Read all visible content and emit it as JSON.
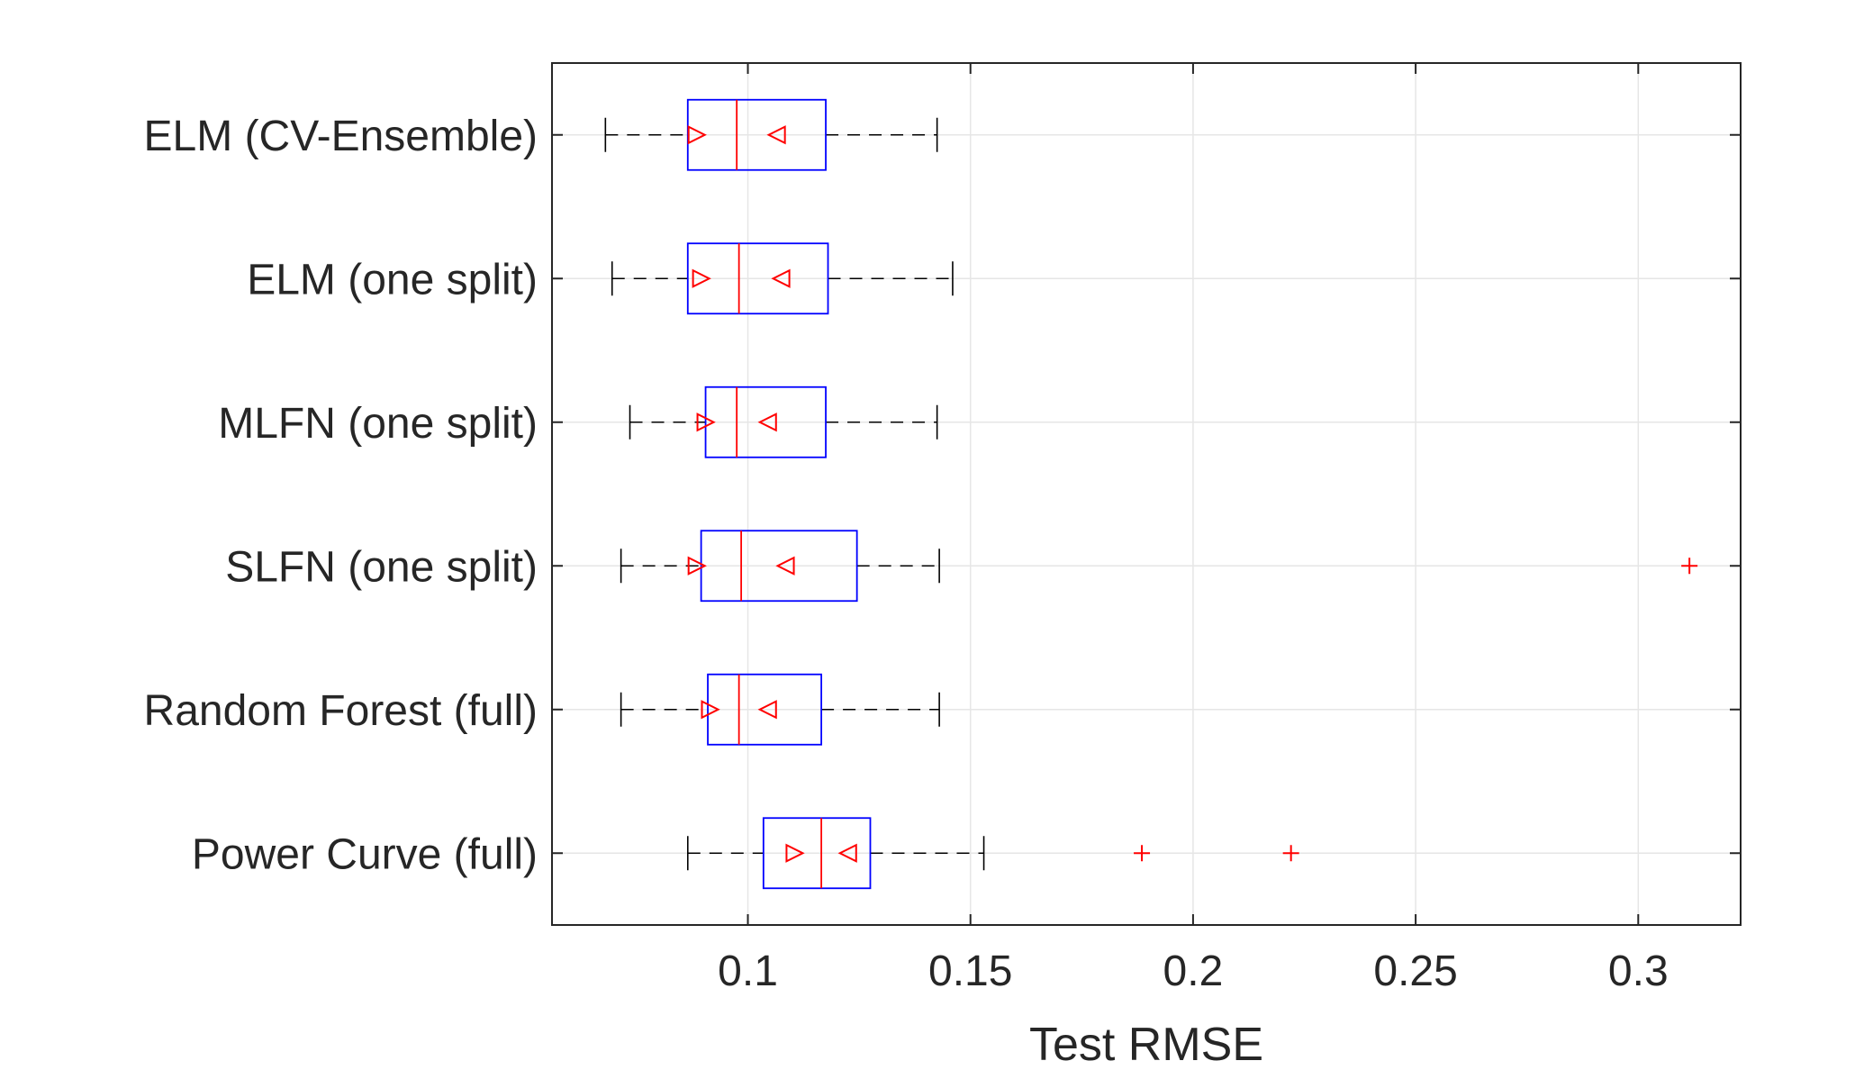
{
  "chart_data": {
    "type": "box",
    "orientation": "horizontal",
    "title": "",
    "xlabel": "Test RMSE",
    "ylabel": "",
    "xlim": [
      0.056,
      0.323
    ],
    "xticks": [
      0.1,
      0.15,
      0.2,
      0.25,
      0.3
    ],
    "xtick_labels": [
      "0.1",
      "0.15",
      "0.2",
      "0.25",
      "0.3"
    ],
    "grid": true,
    "colors": {
      "box": "#0000ff",
      "median": "#ff0000",
      "whisker": "#000000",
      "outlier": "#ff0000",
      "notch_marker": "#ff0000",
      "grid": "#e6e6e6",
      "axes": "#262626"
    },
    "notch_marker_shape": "triangle",
    "outlier_marker": "+",
    "categories": [
      "ELM (CV-Ensemble)",
      "ELM (one split)",
      "MLFN (one split)",
      "SLFN (one split)",
      "Random Forest (full)",
      "Power Curve (full)"
    ],
    "boxes": [
      {
        "whisker_low": 0.068,
        "q1": 0.0865,
        "median": 0.0975,
        "q3": 0.1175,
        "whisker_high": 0.1425,
        "notch_low": 0.0885,
        "notch_high": 0.1065,
        "outliers": []
      },
      {
        "whisker_low": 0.0695,
        "q1": 0.0865,
        "median": 0.098,
        "q3": 0.118,
        "whisker_high": 0.146,
        "notch_low": 0.0895,
        "notch_high": 0.1075,
        "outliers": []
      },
      {
        "whisker_low": 0.0735,
        "q1": 0.0905,
        "median": 0.0975,
        "q3": 0.1175,
        "whisker_high": 0.1425,
        "notch_low": 0.0905,
        "notch_high": 0.1045,
        "outliers": []
      },
      {
        "whisker_low": 0.0715,
        "q1": 0.0895,
        "median": 0.0985,
        "q3": 0.1245,
        "whisker_high": 0.143,
        "notch_low": 0.0885,
        "notch_high": 0.1085,
        "outliers": [
          0.3115
        ]
      },
      {
        "whisker_low": 0.0715,
        "q1": 0.091,
        "median": 0.098,
        "q3": 0.1165,
        "whisker_high": 0.143,
        "notch_low": 0.0915,
        "notch_high": 0.1045,
        "outliers": []
      },
      {
        "whisker_low": 0.0865,
        "q1": 0.1035,
        "median": 0.1165,
        "q3": 0.1275,
        "whisker_high": 0.153,
        "notch_low": 0.1105,
        "notch_high": 0.1225,
        "outliers": [
          0.1885,
          0.222
        ]
      }
    ]
  }
}
